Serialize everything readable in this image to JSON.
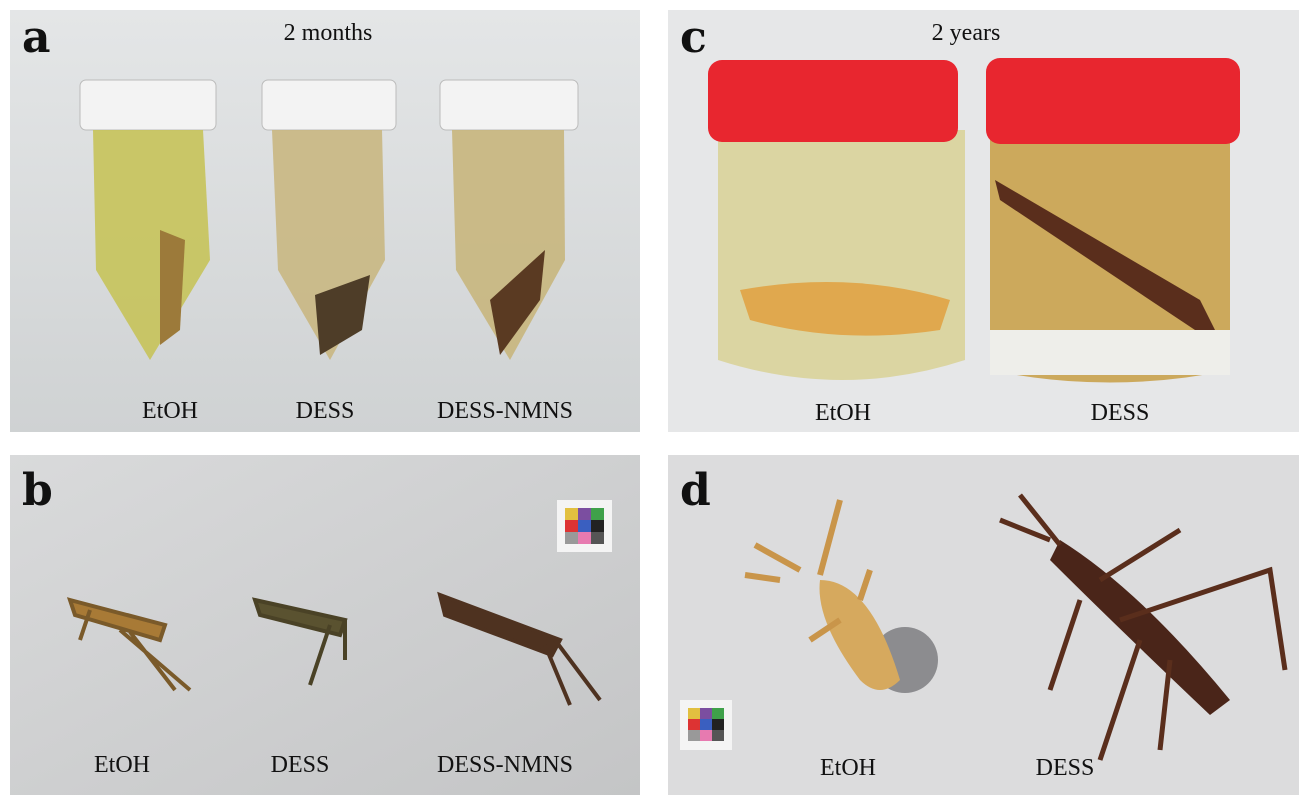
{
  "panels": [
    {
      "letter": "a",
      "caption": "2 months",
      "labels": [
        "EtOH",
        "DESS",
        "DESS-NMNS"
      ]
    },
    {
      "letter": "c",
      "caption": "2 years",
      "labels": [
        "EtOH",
        "DESS"
      ]
    },
    {
      "letter": "b",
      "labels": [
        "EtOH",
        "DESS",
        "DESS-NMNS"
      ]
    },
    {
      "letter": "d",
      "labels": [
        "EtOH",
        "DESS"
      ]
    }
  ]
}
